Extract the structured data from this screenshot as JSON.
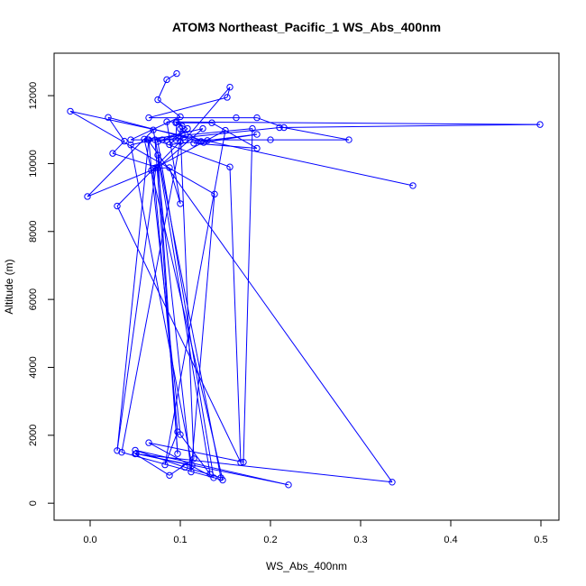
{
  "chart_data": {
    "type": "line",
    "title": "ATOM3 Northeast_Pacific_1 WS_Abs_400nm",
    "xlabel": "WS_Abs_400nm",
    "ylabel": "Altitude (m)",
    "xlim": [
      -0.04,
      0.52
    ],
    "ylim": [
      -500,
      13250
    ],
    "xticks": [
      "0.0",
      "0.1",
      "0.2",
      "0.3",
      "0.4",
      "0.5"
    ],
    "xtick_values": [
      0.0,
      0.1,
      0.2,
      0.3,
      0.4,
      0.5
    ],
    "yticks": [
      "0",
      "2000",
      "4000",
      "6000",
      "8000",
      "10000",
      "12000"
    ],
    "ytick_values": [
      0,
      2000,
      4000,
      6000,
      8000,
      10000,
      12000
    ],
    "grid": false,
    "legend": "none",
    "series_color": "#0000ff",
    "marker": "open-circle",
    "series": [
      {
        "x": [
          0.096,
          0.085,
          0.075,
          0.1,
          0.045,
          0.105,
          0.155,
          0.152,
          0.065,
          0.162,
          0.185,
          0.215,
          0.287,
          0.2,
          0.095,
          0.096,
          0.108,
          0.088,
          0.13,
          0.185,
          0.126,
          0.115,
          0.185,
          0.135,
          0.095,
          0.102,
          0.102,
          0.08,
          0.21,
          0.499,
          0.085,
          0.1,
          0.088,
          0.07,
          0.097,
          0.083,
          0.15,
          0.073,
          0.03,
          0.065,
          0.068,
          0.1,
          0.133,
          0.075,
          0.097,
          0.072,
          0.155,
          0.167,
          0.03,
          0.1,
          0.035,
          0.147,
          0.06,
          0.18,
          0.17,
          0.065,
          0.137,
          0.075,
          0.085,
          0.064,
          0.335,
          0.05,
          0.088,
          0.115,
          0.1,
          0.123,
          0.02,
          0.038,
          0.025,
          0.075,
          0.125,
          0.045,
          0.113,
          0.051,
          0.22,
          0.05,
          0.105,
          0.145,
          0.07,
          -0.003,
          0.075,
          0.112,
          0.138,
          -0.022,
          0.358
        ],
        "y": [
          12650,
          12470,
          11880,
          11380,
          10700,
          10700,
          12250,
          11950,
          11350,
          11350,
          11350,
          11060,
          10700,
          10700,
          10700,
          11220,
          11030,
          10560,
          10680,
          10860,
          10620,
          10600,
          10450,
          11200,
          11200,
          11100,
          10870,
          10700,
          11060,
          11150,
          11230,
          8820,
          9880,
          9860,
          2100,
          1130,
          10980,
          9880,
          1550,
          10700,
          9800,
          2020,
          860,
          10250,
          1460,
          10700,
          9900,
          1200,
          8750,
          10650,
          1500,
          680,
          10720,
          11030,
          1210,
          1780,
          750,
          10650,
          10700,
          10700,
          620,
          1450,
          820,
          1310,
          11020,
          10650,
          11360,
          10660,
          10300,
          9880,
          11030,
          10550,
          1110,
          1460,
          540,
          1560,
          1060,
          750,
          10990,
          9030,
          9880,
          920,
          9100,
          11540,
          9350
        ]
      }
    ]
  }
}
